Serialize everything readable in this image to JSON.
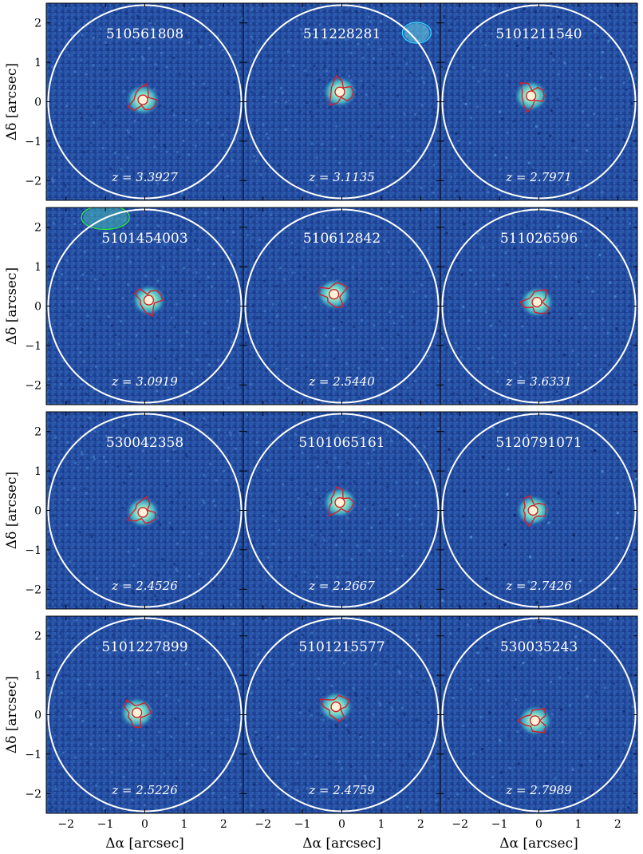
{
  "figure": {
    "ylabel": "Δδ [arcsec]",
    "xlabel": "Δα [arcsec]",
    "x_ticks": [
      "−2",
      "−1",
      "0",
      "1",
      "2"
    ],
    "y_ticks": [
      "2",
      "1",
      "0",
      "−1",
      "−2"
    ],
    "axis_range": [
      -2.5,
      2.5
    ],
    "colors": {
      "background_low": "#1c3b8f",
      "background_mid": "#2456a8",
      "emission": "#7fe3c8",
      "aperture_circle": "#ffffff",
      "contour_red": "#d41f2a",
      "contour_cyan": "#33d6ff",
      "contour_green": "#2ee84a"
    }
  },
  "panels": [
    {
      "id": "510561808",
      "z": "z = 3.3927",
      "src": [
        -0.05,
        0.05
      ]
    },
    {
      "id": "511228281",
      "z": "z = 3.1135",
      "src": [
        -0.05,
        0.25
      ]
    },
    {
      "id": "5101211540",
      "z": "z = 2.7971",
      "src": [
        -0.2,
        0.15
      ]
    },
    {
      "id": "5101454003",
      "z": "z = 3.0919",
      "src": [
        0.1,
        0.15
      ]
    },
    {
      "id": "510612842",
      "z": "z = 2.5440",
      "src": [
        -0.2,
        0.3
      ]
    },
    {
      "id": "511026596",
      "z": "z = 3.6331",
      "src": [
        -0.05,
        0.1
      ]
    },
    {
      "id": "530042358",
      "z": "z = 2.4526",
      "src": [
        -0.05,
        -0.05
      ]
    },
    {
      "id": "5101065161",
      "z": "z = 2.2667",
      "src": [
        -0.05,
        0.2
      ]
    },
    {
      "id": "5120791071",
      "z": "z = 2.7426",
      "src": [
        -0.15,
        0.0
      ]
    },
    {
      "id": "5101227899",
      "z": "z = 2.5226",
      "src": [
        -0.2,
        0.05
      ]
    },
    {
      "id": "5101215577",
      "z": "z = 2.4759",
      "src": [
        -0.15,
        0.2
      ]
    },
    {
      "id": "530035243",
      "z": "z = 2.7989",
      "src": [
        -0.1,
        -0.15
      ]
    }
  ]
}
